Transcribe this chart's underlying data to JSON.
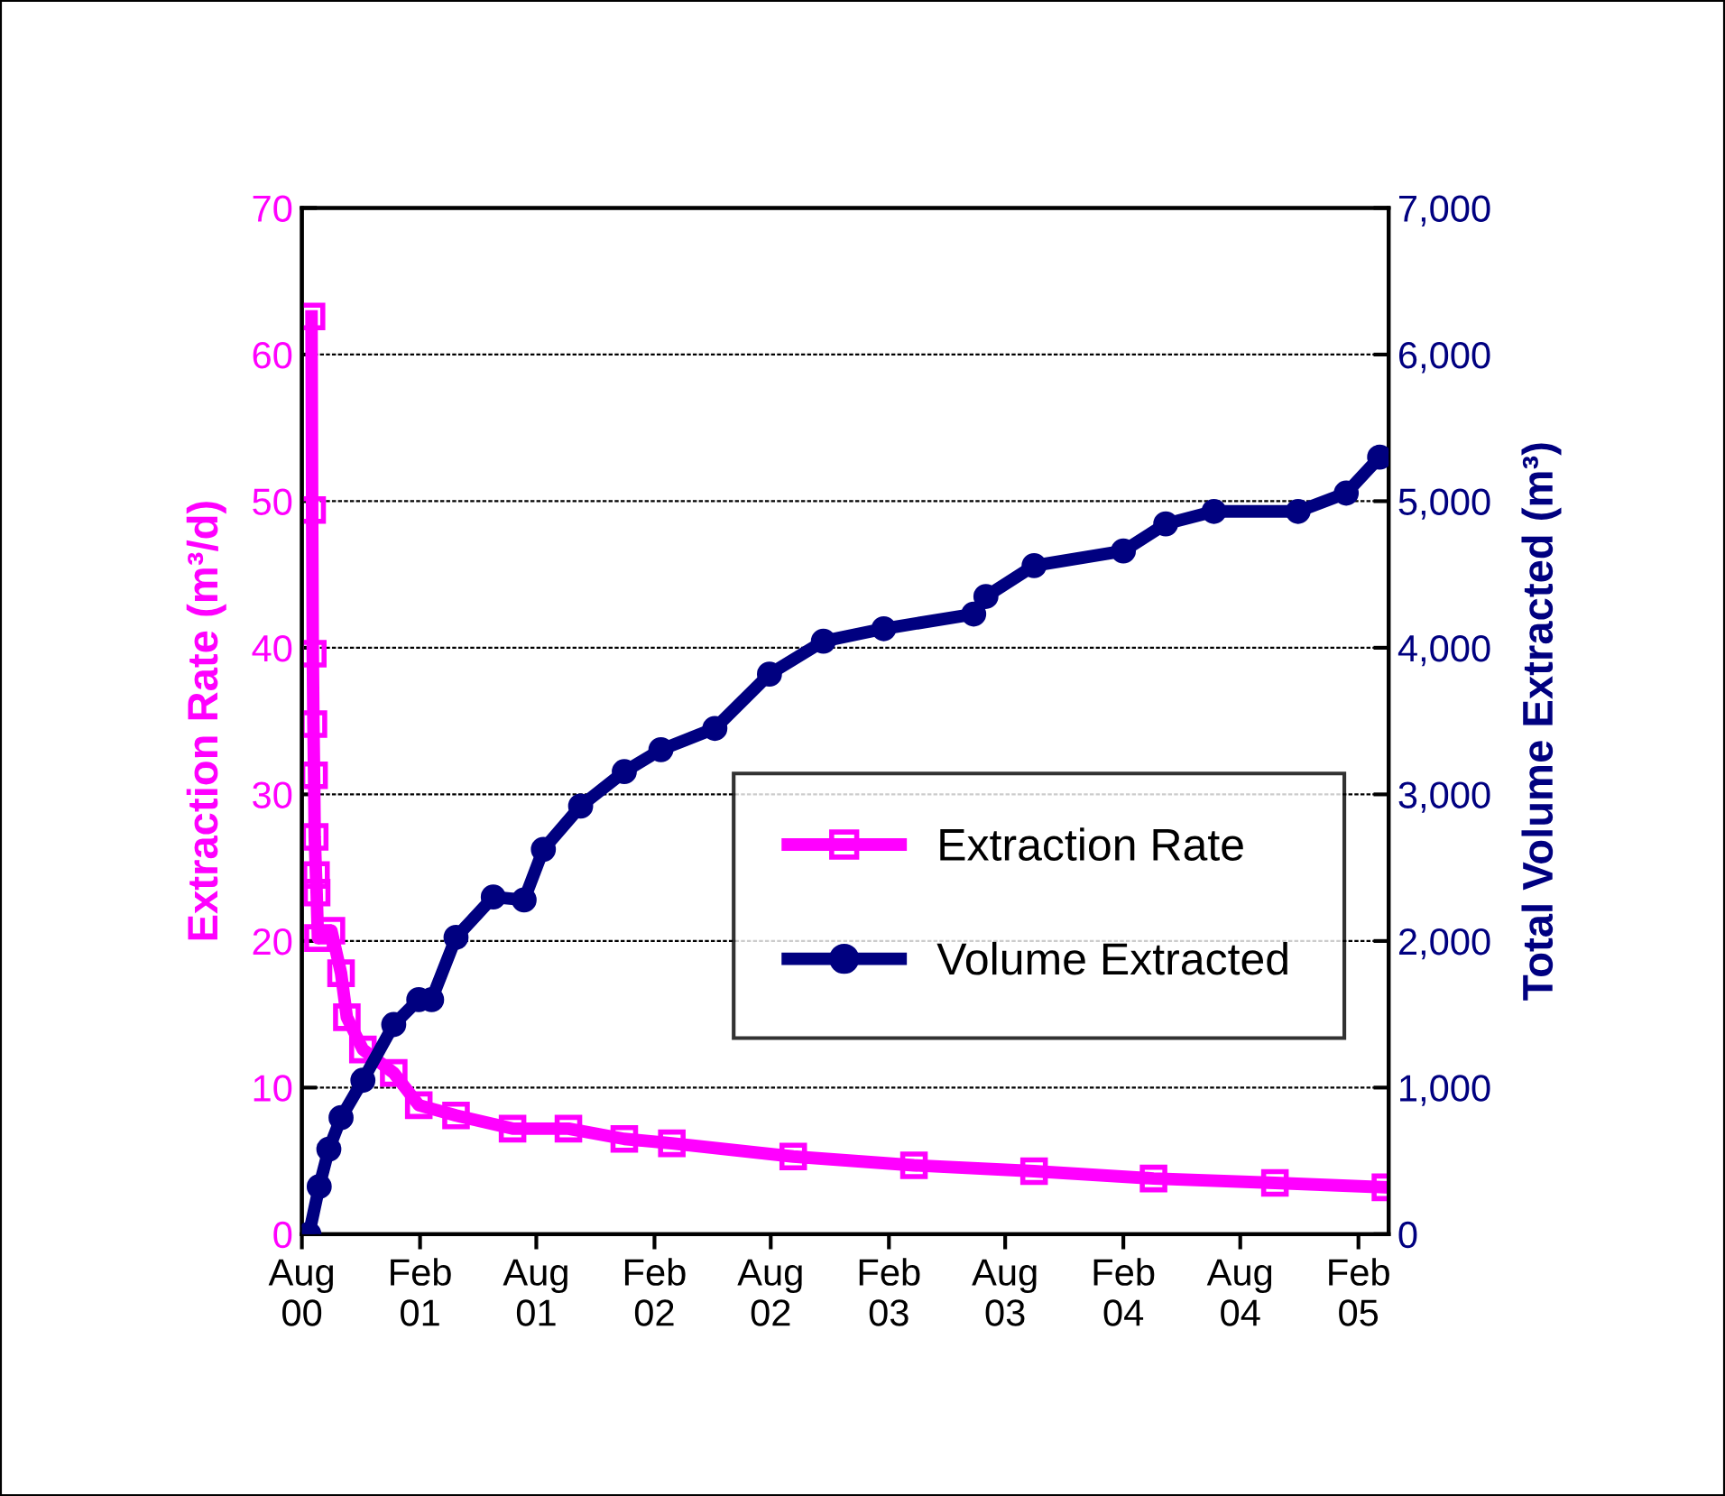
{
  "chart_data": {
    "type": "line",
    "ylabel": "Extraction Rate (m³/d)",
    "y2label": "Total Volume Extracted (m³)",
    "xlim": [
      "2000-08-01",
      "2005-03-20"
    ],
    "xticks": [
      {
        "value": "2000-08-01",
        "label": "Aug\n00"
      },
      {
        "value": "2001-02-01",
        "label": "Feb\n01"
      },
      {
        "value": "2001-08-01",
        "label": "Aug\n01"
      },
      {
        "value": "2002-02-01",
        "label": "Feb\n02"
      },
      {
        "value": "2002-08-01",
        "label": "Aug\n02"
      },
      {
        "value": "2003-02-01",
        "label": "Feb\n03"
      },
      {
        "value": "2003-08-01",
        "label": "Aug\n03"
      },
      {
        "value": "2004-02-01",
        "label": "Feb\n04"
      },
      {
        "value": "2004-08-01",
        "label": "Aug\n04"
      },
      {
        "value": "2005-02-01",
        "label": "Feb\n05"
      }
    ],
    "ylim": [
      0,
      70
    ],
    "yticks": [
      0,
      10,
      20,
      30,
      40,
      50,
      60,
      70
    ],
    "y2lim": [
      0,
      7000
    ],
    "y2ticks": [
      {
        "value": 0,
        "label": "0"
      },
      {
        "value": 1000,
        "label": "1,000"
      },
      {
        "value": 2000,
        "label": "2,000"
      },
      {
        "value": 3000,
        "label": "3,000"
      },
      {
        "value": 4000,
        "label": "4,000"
      },
      {
        "value": 5000,
        "label": "5,000"
      },
      {
        "value": 6000,
        "label": "6,000"
      },
      {
        "value": 7000,
        "label": "7,000"
      }
    ],
    "grid": "y",
    "legend": "right",
    "line_style": "solid",
    "series": [
      {
        "name": "Extraction Rate",
        "color": "#ff00ff",
        "marker": "square",
        "axis": "y",
        "x": [
          "2000-08-16",
          "2000-08-17",
          "2000-08-18",
          "2000-08-19",
          "2000-08-20",
          "2000-08-21",
          "2000-08-23",
          "2000-08-24",
          "2000-08-26",
          "2000-09-16",
          "2000-10-01",
          "2000-10-10",
          "2000-11-04",
          "2000-12-22",
          "2001-01-30",
          "2001-03-29",
          "2001-06-25",
          "2001-09-20",
          "2001-12-16",
          "2002-02-28",
          "2002-09-05",
          "2003-03-12",
          "2003-09-15",
          "2004-03-19",
          "2004-09-24",
          "2005-03-15"
        ],
        "values": [
          62.6,
          49.4,
          39.6,
          34.8,
          31.3,
          27.1,
          24.5,
          23.3,
          20.2,
          20.7,
          17.8,
          14.8,
          12.6,
          11.0,
          8.8,
          8.1,
          7.2,
          7.2,
          6.5,
          6.2,
          5.3,
          4.7,
          4.3,
          3.8,
          3.5,
          3.2
        ]
      },
      {
        "name": "Volume Extracted",
        "color": "#000080",
        "marker": "circle",
        "axis": "y2",
        "x": [
          "2000-08-12",
          "2000-08-28",
          "2000-09-12",
          "2000-10-01",
          "2000-11-04",
          "2000-12-22",
          "2001-01-30",
          "2001-02-19",
          "2001-03-29",
          "2001-05-26",
          "2001-07-13",
          "2001-08-12",
          "2001-10-09",
          "2001-12-16",
          "2002-02-11",
          "2002-05-06",
          "2002-07-30",
          "2002-10-22",
          "2003-01-24",
          "2003-06-13",
          "2003-07-02",
          "2003-09-15",
          "2004-02-01",
          "2004-04-07",
          "2004-06-21",
          "2004-10-30",
          "2005-01-13",
          "2005-03-06"
        ],
        "values": [
          0,
          325,
          580,
          795,
          1050,
          1430,
          1600,
          1600,
          2025,
          2300,
          2280,
          2625,
          2920,
          3155,
          3305,
          3450,
          3820,
          4045,
          4130,
          4230,
          4350,
          4560,
          4660,
          4845,
          4930,
          4930,
          5055,
          5300
        ]
      }
    ]
  }
}
